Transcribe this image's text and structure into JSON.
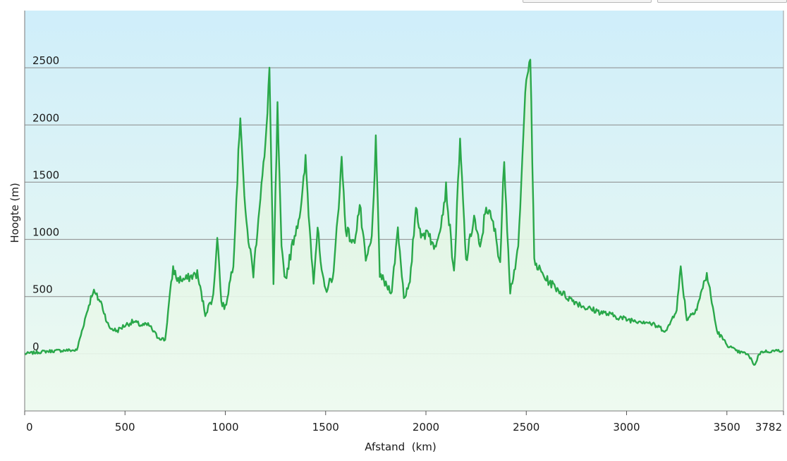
{
  "toolbar": {
    "buttons": [
      "",
      ""
    ]
  },
  "chart_data": {
    "type": "area",
    "xlabel": "Afstand  (km)",
    "ylabel": "Hoogte (m)",
    "xlim": [
      0,
      3782
    ],
    "ylim": [
      -500,
      3000
    ],
    "x_ticks": [
      0,
      500,
      1000,
      1500,
      2000,
      2500,
      3000,
      3500,
      3782
    ],
    "y_ticks": [
      0,
      500,
      1000,
      1500,
      2000,
      2500
    ],
    "grid": true,
    "colors": {
      "line": "#2aa84a",
      "fill_top": "#d9f2d9",
      "bg_top": "#cfeefa",
      "bg_bottom": "#eefaf0",
      "grid": "#8a8a8a"
    },
    "series": [
      {
        "x": [
          0,
          100,
          200,
          260,
          300,
          340,
          380,
          420,
          460,
          500,
          540,
          580,
          620,
          660,
          700,
          720,
          740,
          760,
          800,
          860,
          900,
          940,
          960,
          980,
          1000,
          1040,
          1075,
          1100,
          1140,
          1170,
          1200,
          1220,
          1240,
          1260,
          1280,
          1300,
          1340,
          1380,
          1400,
          1420,
          1440,
          1460,
          1480,
          1500,
          1540,
          1580,
          1600,
          1640,
          1670,
          1700,
          1730,
          1750,
          1770,
          1800,
          1830,
          1860,
          1890,
          1920,
          1950,
          1980,
          2010,
          2040,
          2080,
          2100,
          2140,
          2170,
          2200,
          2240,
          2270,
          2300,
          2340,
          2370,
          2390,
          2420,
          2460,
          2500,
          2520,
          2540,
          2560,
          2600,
          2700,
          2800,
          2900,
          3000,
          3100,
          3200,
          3250,
          3270,
          3300,
          3350,
          3400,
          3450,
          3500,
          3550,
          3600,
          3640,
          3660,
          3680,
          3700,
          3782
        ],
        "values": [
          0,
          20,
          30,
          30,
          300,
          550,
          450,
          230,
          200,
          250,
          280,
          250,
          250,
          150,
          120,
          450,
          750,
          650,
          650,
          700,
          350,
          500,
          1050,
          450,
          400,
          800,
          2100,
          1200,
          700,
          1300,
          1800,
          2500,
          600,
          2150,
          900,
          650,
          1000,
          1300,
          1700,
          1100,
          650,
          1100,
          700,
          550,
          700,
          1700,
          1100,
          950,
          1300,
          800,
          1000,
          1850,
          700,
          600,
          550,
          1100,
          500,
          600,
          1300,
          1000,
          1100,
          900,
          1200,
          1450,
          700,
          1850,
          800,
          1200,
          900,
          1300,
          1100,
          800,
          1700,
          550,
          900,
          2450,
          2600,
          800,
          750,
          650,
          500,
          400,
          350,
          300,
          280,
          200,
          400,
          750,
          300,
          400,
          700,
          200,
          80,
          20,
          0,
          -100,
          0,
          20,
          20,
          30
        ]
      }
    ]
  }
}
